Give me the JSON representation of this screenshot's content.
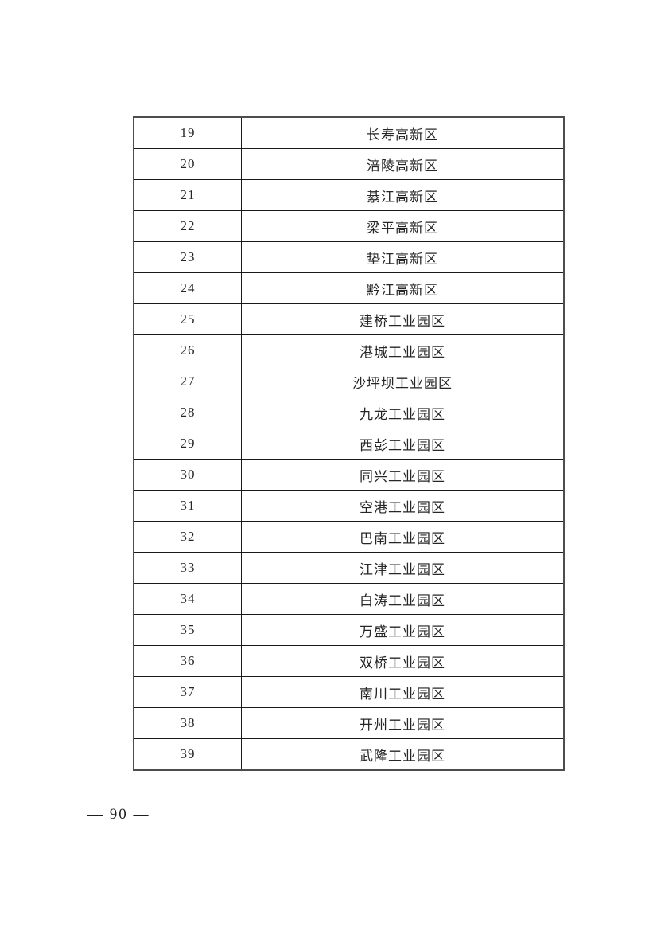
{
  "table": {
    "rows": [
      {
        "no": "19",
        "name": "长寿高新区"
      },
      {
        "no": "20",
        "name": "涪陵高新区"
      },
      {
        "no": "21",
        "name": "綦江高新区"
      },
      {
        "no": "22",
        "name": "梁平高新区"
      },
      {
        "no": "23",
        "name": "垫江高新区"
      },
      {
        "no": "24",
        "name": "黔江高新区"
      },
      {
        "no": "25",
        "name": "建桥工业园区"
      },
      {
        "no": "26",
        "name": "港城工业园区"
      },
      {
        "no": "27",
        "name": "沙坪坝工业园区"
      },
      {
        "no": "28",
        "name": "九龙工业园区"
      },
      {
        "no": "29",
        "name": "西彭工业园区"
      },
      {
        "no": "30",
        "name": "同兴工业园区"
      },
      {
        "no": "31",
        "name": "空港工业园区"
      },
      {
        "no": "32",
        "name": "巴南工业园区"
      },
      {
        "no": "33",
        "name": "江津工业园区"
      },
      {
        "no": "34",
        "name": "白涛工业园区"
      },
      {
        "no": "35",
        "name": "万盛工业园区"
      },
      {
        "no": "36",
        "name": "双桥工业园区"
      },
      {
        "no": "37",
        "name": "南川工业园区"
      },
      {
        "no": "38",
        "name": "开州工业园区"
      },
      {
        "no": "39",
        "name": "武隆工业园区"
      }
    ]
  },
  "footer": {
    "page_number_label": "— 90 —"
  }
}
